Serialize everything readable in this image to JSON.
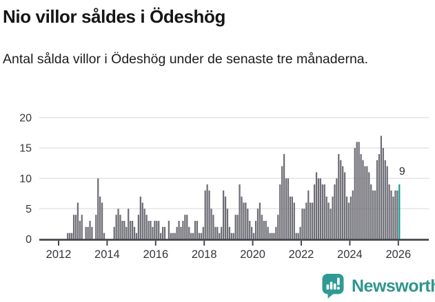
{
  "header": {
    "title": "Nio villor såldes i Ödeshög",
    "subtitle": "Antal sålda villor i Ödeshög under de senaste tre månaderna."
  },
  "chart_data": {
    "type": "bar",
    "title": "Nio villor såldes i Ödeshög",
    "subtitle": "Antal sålda villor i Ödeshög under de senaste tre månaderna.",
    "x_start": {
      "year": 2012,
      "month": 1
    },
    "x_frequency": "monthly",
    "values": [
      0,
      0,
      0,
      0,
      1,
      1,
      1,
      4,
      4,
      6,
      3,
      4,
      0,
      2,
      2,
      3,
      2,
      0,
      4,
      10,
      7,
      6,
      1,
      0,
      0,
      0,
      0,
      2,
      4,
      5,
      4,
      3,
      3,
      2,
      5,
      3,
      3,
      2,
      1,
      4,
      7,
      6,
      5,
      4,
      3,
      3,
      2,
      3,
      3,
      3,
      1,
      2,
      2,
      0,
      3,
      1,
      1,
      1,
      2,
      3,
      2,
      3,
      4,
      4,
      2,
      1,
      1,
      3,
      3,
      1,
      1,
      2,
      8,
      9,
      8,
      5,
      4,
      2,
      2,
      1,
      2,
      8,
      7,
      5,
      2,
      1,
      1,
      4,
      4,
      9,
      7,
      6,
      6,
      5,
      3,
      2,
      1,
      3,
      5,
      6,
      4,
      3,
      3,
      2,
      1,
      1,
      1,
      2,
      4,
      9,
      12,
      14,
      10,
      10,
      7,
      7,
      6,
      1,
      1,
      2,
      5,
      5,
      6,
      8,
      6,
      6,
      9,
      11,
      10,
      10,
      9,
      9,
      7,
      6,
      5,
      7,
      9,
      10,
      14,
      13,
      12,
      11,
      7,
      6,
      7,
      8,
      15,
      16,
      16,
      14,
      13,
      12,
      12,
      11,
      9,
      8,
      8,
      13,
      14,
      17,
      15,
      13,
      12,
      9,
      8,
      7,
      8,
      8,
      9
    ],
    "highlight_index": 168,
    "annotation": {
      "label": "9",
      "color": "#2e2e2e"
    },
    "ylim": [
      0,
      20
    ],
    "yticks": [
      0,
      5,
      10,
      15,
      20
    ],
    "xticks": [
      2012,
      2014,
      2016,
      2018,
      2020,
      2022,
      2024,
      2026
    ],
    "grid": true,
    "legend": "none",
    "colors": {
      "bar": "#6d6d75",
      "highlight": "#12a09a",
      "grid": "#e3e3e3",
      "axis": "#46464e",
      "tick_text": "#35353b"
    }
  },
  "footer": {
    "brand": "Newsworthy",
    "brand_color": "#2f958e",
    "icon_color": "#2f9a94"
  }
}
